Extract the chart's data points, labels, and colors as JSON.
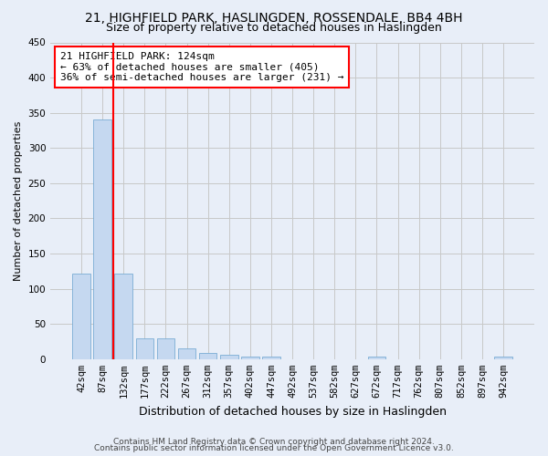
{
  "title1": "21, HIGHFIELD PARK, HASLINGDEN, ROSSENDALE, BB4 4BH",
  "title2": "Size of property relative to detached houses in Haslingden",
  "xlabel": "Distribution of detached houses by size in Haslingden",
  "ylabel": "Number of detached properties",
  "bar_color": "#c5d8f0",
  "bar_edge_color": "#7aadd4",
  "bins": [
    "42sqm",
    "87sqm",
    "132sqm",
    "177sqm",
    "222sqm",
    "267sqm",
    "312sqm",
    "357sqm",
    "402sqm",
    "447sqm",
    "492sqm",
    "537sqm",
    "582sqm",
    "627sqm",
    "672sqm",
    "717sqm",
    "762sqm",
    "807sqm",
    "852sqm",
    "897sqm",
    "942sqm"
  ],
  "values": [
    122,
    340,
    122,
    29,
    29,
    15,
    9,
    6,
    4,
    4,
    0,
    0,
    0,
    0,
    4,
    0,
    0,
    0,
    0,
    0,
    4
  ],
  "ylim": [
    0,
    450
  ],
  "yticks": [
    0,
    50,
    100,
    150,
    200,
    250,
    300,
    350,
    400,
    450
  ],
  "vline_x_index": 2,
  "annotation_line1": "21 HIGHFIELD PARK: 124sqm",
  "annotation_line2": "← 63% of detached houses are smaller (405)",
  "annotation_line3": "36% of semi-detached houses are larger (231) →",
  "annotation_box_color": "white",
  "annotation_box_edge_color": "red",
  "vline_color": "red",
  "footer1": "Contains HM Land Registry data © Crown copyright and database right 2024.",
  "footer2": "Contains public sector information licensed under the Open Government Licence v3.0.",
  "bg_color": "#e8eef8",
  "grid_color": "#c8c8c8",
  "title_fontsize": 10,
  "subtitle_fontsize": 9,
  "ylabel_fontsize": 8,
  "xlabel_fontsize": 9,
  "tick_fontsize": 7.5,
  "annotation_fontsize": 8,
  "footer_fontsize": 6.5
}
